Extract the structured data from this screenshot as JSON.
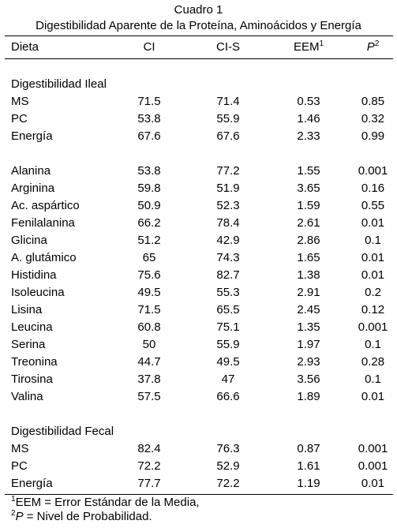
{
  "title": "Cuadro 1",
  "subtitle": "Digestibilidad Aparente de la Proteína, Aminoácidos y Energía",
  "headers": {
    "dieta": "Dieta",
    "ci": "CI",
    "cis": "CI-S",
    "eem": "EEM",
    "eem_sup": "1",
    "p": "P",
    "p_sup": "2"
  },
  "section_ileal": "Digestibilidad Ileal",
  "ileal_rows": [
    {
      "label": "MS",
      "ci": "71.5",
      "cis": "71.4",
      "eem": "0.53",
      "p": "0.85"
    },
    {
      "label": "PC",
      "ci": "53.8",
      "cis": "55.9",
      "eem": "1.46",
      "p": "0.32"
    },
    {
      "label": "Energía",
      "ci": "67.6",
      "cis": "67.6",
      "eem": "2.33",
      "p": "0.99"
    }
  ],
  "amino_rows": [
    {
      "label": "Alanina",
      "ci": "53.8",
      "cis": "77.2",
      "eem": "1.55",
      "p": "0.001"
    },
    {
      "label": "Arginina",
      "ci": "59.8",
      "cis": "51.9",
      "eem": "3.65",
      "p": "0.16"
    },
    {
      "label": "Ac. aspártico",
      "ci": "50.9",
      "cis": "52.3",
      "eem": "1.59",
      "p": "0.55"
    },
    {
      "label": "Fenilalanina",
      "ci": "66.2",
      "cis": "78.4",
      "eem": "2.61",
      "p": "0.01"
    },
    {
      "label": "Glicina",
      "ci": "51.2",
      "cis": "42.9",
      "eem": "2.86",
      "p": "0.1"
    },
    {
      "label": "A. glutámico",
      "ci": "65",
      "cis": "74.3",
      "eem": "1.65",
      "p": "0.01"
    },
    {
      "label": "Histidina",
      "ci": "75.6",
      "cis": "82.7",
      "eem": "1.38",
      "p": "0.01"
    },
    {
      "label": "Isoleucina",
      "ci": "49.5",
      "cis": "55.3",
      "eem": "2.91",
      "p": "0.2"
    },
    {
      "label": "Lisina",
      "ci": "71.5",
      "cis": "65.5",
      "eem": "2.45",
      "p": "0.12"
    },
    {
      "label": "Leucina",
      "ci": "60.8",
      "cis": "75.1",
      "eem": "1.35",
      "p": "0.001"
    },
    {
      "label": "Serina",
      "ci": "50",
      "cis": "55.9",
      "eem": "1.97",
      "p": "0.1"
    },
    {
      "label": "Treonina",
      "ci": "44.7",
      "cis": "49.5",
      "eem": "2.93",
      "p": "0.28"
    },
    {
      "label": "Tirosina",
      "ci": "37.8",
      "cis": "47",
      "eem": "3.56",
      "p": "0.1"
    },
    {
      "label": "Valina",
      "ci": "57.5",
      "cis": "66.6",
      "eem": "1.89",
      "p": "0.01"
    }
  ],
  "section_fecal": "Digestibilidad Fecal",
  "fecal_rows": [
    {
      "label": "MS",
      "ci": "82.4",
      "cis": "76.3",
      "eem": "0.87",
      "p": "0.001"
    },
    {
      "label": "PC",
      "ci": "72.2",
      "cis": "52.9",
      "eem": "1.61",
      "p": "0.001"
    },
    {
      "label": "Energía",
      "ci": "77.7",
      "cis": "72.2",
      "eem": "1.19",
      "p": "0.01"
    }
  ],
  "footnotes": {
    "n1_sup": "1",
    "n1_text": "EEM = Error Estándar de la Media,",
    "n2_sup": "2",
    "n2_var": "P",
    "n2_text": " = Nivel de Probabilidad."
  }
}
